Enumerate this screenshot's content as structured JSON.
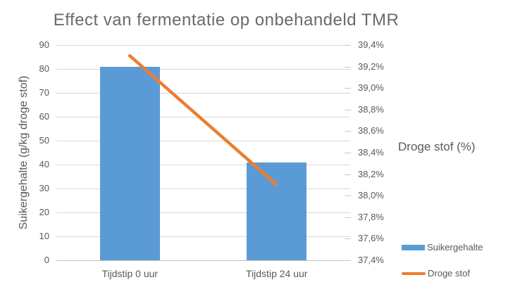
{
  "title": "Effect van fermentatie op onbehandeld TMR",
  "colors": {
    "bar": "#5B9BD5",
    "line": "#ED7D31",
    "title_text": "#6a6a6a",
    "axis_text": "#595959",
    "gridline": "#d9d9d9",
    "axis_line": "#bfbfbf",
    "background": "#ffffff"
  },
  "chart_data": {
    "type": "combo",
    "title": "Effect van fermentatie op onbehandeld TMR",
    "categories": [
      "Tijdstip 0 uur",
      "Tijdstip 24 uur"
    ],
    "series": [
      {
        "name": "Suikergehalte",
        "type": "bar",
        "axis": "left",
        "values": [
          81,
          41
        ],
        "color": "#5B9BD5"
      },
      {
        "name": "Droge stof",
        "type": "line",
        "axis": "right",
        "values": [
          39.3,
          38.1
        ],
        "color": "#ED7D31"
      }
    ],
    "y_left": {
      "label": "Suikergehalte (g/kg droge stof)",
      "min": 0,
      "max": 90,
      "step": 10,
      "tick_labels": [
        "0",
        "10",
        "20",
        "30",
        "40",
        "50",
        "60",
        "70",
        "80",
        "90"
      ]
    },
    "y_right": {
      "label": "Droge stof (%)",
      "min": 37.4,
      "max": 39.4,
      "step": 0.2,
      "format": "percent-comma",
      "tick_labels": [
        "37,4%",
        "37,6%",
        "37,8%",
        "38,0%",
        "38,2%",
        "38,4%",
        "38,6%",
        "38,8%",
        "39,0%",
        "39,2%",
        "39,4%"
      ]
    },
    "grid": true,
    "legend_position": "right-bottom"
  },
  "legend": {
    "items": [
      {
        "label": "Suikergehalte",
        "swatch": "bar",
        "color": "#5B9BD5"
      },
      {
        "label": "Droge stof",
        "swatch": "line",
        "color": "#ED7D31"
      }
    ]
  }
}
